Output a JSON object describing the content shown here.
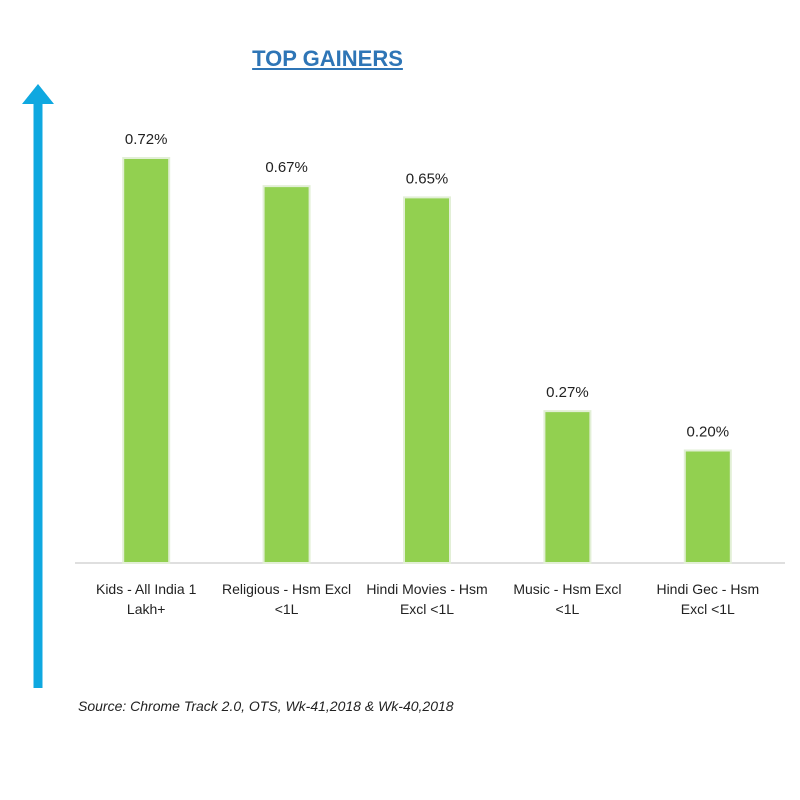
{
  "chart_data": {
    "type": "bar",
    "title": "TOP GAINERS",
    "categories": [
      "Kids - All India 1 Lakh+",
      "Religious - Hsm Excl <1L",
      "Hindi Movies - Hsm Excl <1L",
      "Music - Hsm Excl <1L",
      "Hindi Gec - Hsm Excl <1L"
    ],
    "values": [
      0.72,
      0.67,
      0.65,
      0.27,
      0.2
    ],
    "value_labels": [
      "0.72%",
      "0.67%",
      "0.65%",
      "0.27%",
      "0.20%"
    ],
    "color": "#92d050",
    "source": "Source: Chrome Track 2.0, OTS, Wk-41,2018 & Wk-40,2018"
  }
}
